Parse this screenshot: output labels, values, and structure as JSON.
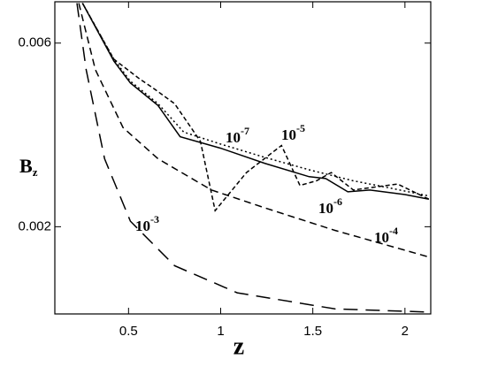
{
  "chart_data": {
    "type": "line",
    "x_label": "z",
    "y_label": {
      "main": "B",
      "sub": "z"
    },
    "xlim": [
      0.1,
      2.14
    ],
    "ylim": [
      0.0001,
      0.0069
    ],
    "xticks": [
      0.5,
      1,
      1.5,
      2
    ],
    "yticks": [
      0.002,
      0.006
    ],
    "series": [
      {
        "label": {
          "base": "10",
          "exp": "-6"
        },
        "color": "#000000",
        "style": "solid",
        "x": [
          0.25,
          0.42,
          0.51,
          0.66,
          0.78,
          1.0,
          1.24,
          1.48,
          1.57,
          1.69,
          1.81,
          2.0,
          2.13
        ],
        "values": [
          0.00687,
          0.00561,
          0.00513,
          0.00464,
          0.00396,
          0.00371,
          0.00338,
          0.00309,
          0.00305,
          0.00276,
          0.0028,
          0.0027,
          0.0026
        ]
      },
      {
        "label": {
          "base": "10",
          "exp": "-7"
        },
        "color": "#000000",
        "style": "dotted",
        "x": [
          0.25,
          0.42,
          0.51,
          0.66,
          0.8,
          1.0,
          1.24,
          1.48,
          1.72,
          1.91,
          2.13
        ],
        "values": [
          0.00687,
          0.00565,
          0.00517,
          0.00468,
          0.00406,
          0.0038,
          0.00351,
          0.00324,
          0.003,
          0.00285,
          0.00267
        ]
      },
      {
        "label": {
          "base": "10",
          "exp": "-5"
        },
        "color": "#000000",
        "style": "short-dash",
        "x": [
          0.25,
          0.42,
          0.56,
          0.63,
          0.75,
          0.89,
          0.97,
          1.14,
          1.33,
          1.43,
          1.52,
          1.6,
          1.72,
          1.96,
          2.13
        ],
        "values": [
          0.00687,
          0.00565,
          0.00522,
          0.00503,
          0.00468,
          0.00386,
          0.00235,
          0.00318,
          0.00377,
          0.0029,
          0.003,
          0.00318,
          0.0028,
          0.00293,
          0.0026
        ]
      },
      {
        "label": {
          "base": "10",
          "exp": "-4"
        },
        "color": "#000000",
        "style": "dash",
        "x": [
          0.23,
          0.32,
          0.47,
          0.66,
          0.95,
          1.24,
          1.62,
          2.13
        ],
        "values": [
          0.00687,
          0.00542,
          0.00416,
          0.00348,
          0.0028,
          0.00241,
          0.00192,
          0.00134
        ]
      },
      {
        "label": {
          "base": "10",
          "exp": "-3"
        },
        "color": "#000000",
        "style": "long-dash",
        "x": [
          0.22,
          0.27,
          0.37,
          0.51,
          0.75,
          1.09,
          1.62,
          2.13
        ],
        "values": [
          0.00687,
          0.00542,
          0.00348,
          0.00212,
          0.00115,
          0.00056,
          0.00021,
          0.00014
        ]
      }
    ]
  }
}
